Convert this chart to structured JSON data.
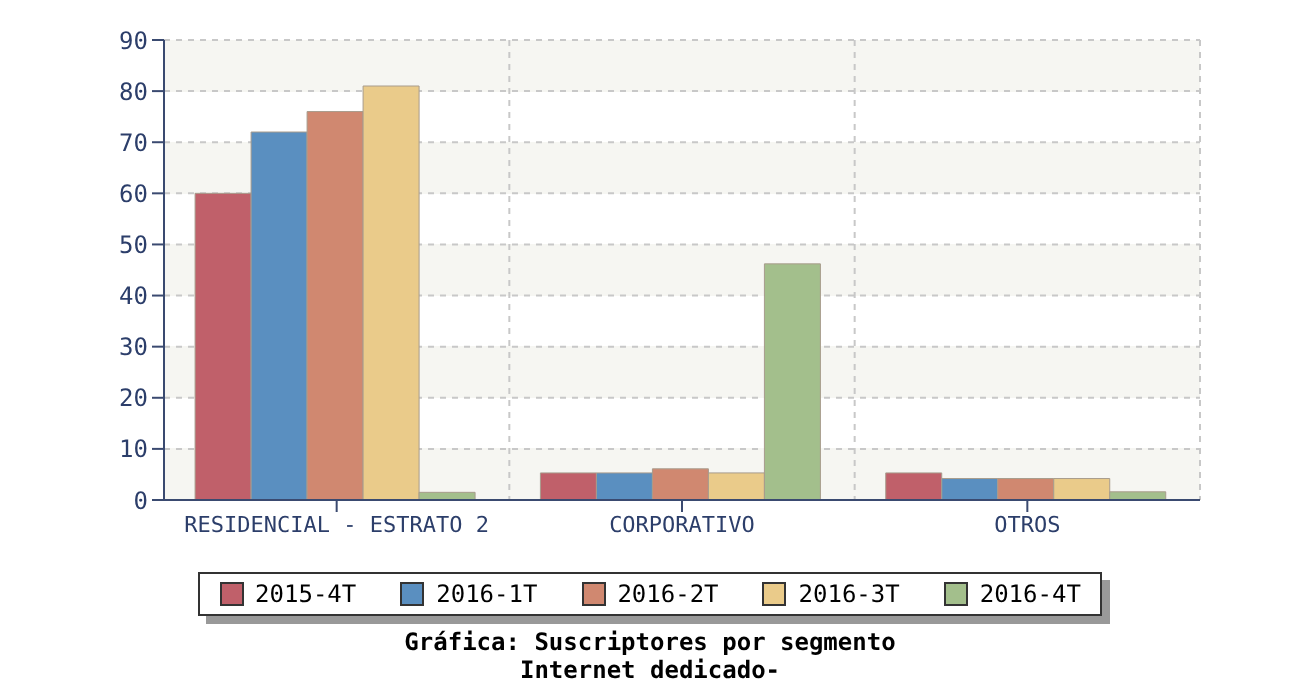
{
  "chart_data": {
    "type": "bar",
    "title": "Gráfica: Suscriptores por segmento",
    "subtitle": "Internet dedicado-",
    "categories": [
      "RESIDENCIAL - ESTRATO 2",
      "CORPORATIVO",
      "OTROS"
    ],
    "series": [
      {
        "name": "2015-4T",
        "color": "#c0606a",
        "values": [
          60,
          5.3,
          5.3
        ]
      },
      {
        "name": "2016-1T",
        "color": "#5a8fc0",
        "values": [
          72,
          5.3,
          4.2
        ]
      },
      {
        "name": "2016-2T",
        "color": "#d08870",
        "values": [
          76,
          6.1,
          4.2
        ]
      },
      {
        "name": "2016-3T",
        "color": "#eacb8a",
        "values": [
          81,
          5.3,
          4.2
        ]
      },
      {
        "name": "2016-4T",
        "color": "#a3bf8c",
        "values": [
          1.5,
          46.2,
          1.6
        ]
      }
    ],
    "ylim": [
      0,
      90
    ],
    "yticks": [
      0,
      10,
      20,
      30,
      40,
      50,
      60,
      70,
      80,
      90
    ],
    "grid": true,
    "legend": "bottom"
  }
}
